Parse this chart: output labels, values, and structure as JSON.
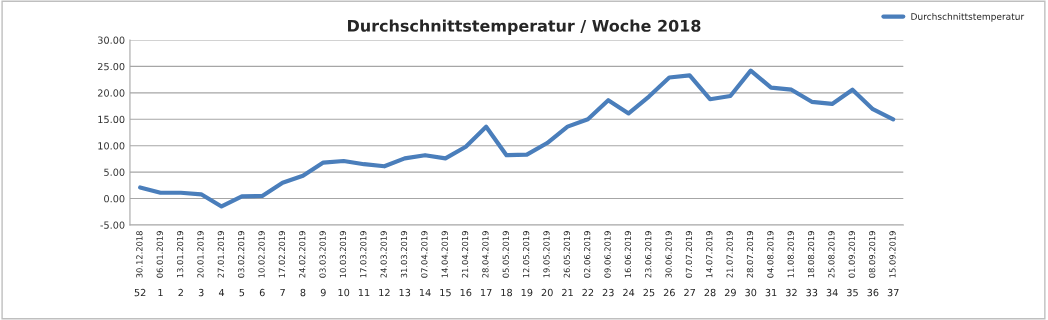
{
  "chart_data": {
    "type": "line",
    "title": "Durchschnittstemperatur / Woche 2018",
    "categories": [
      "30.12.2018\n52",
      "06.01.2019\n1",
      "13.01.2019\n2",
      "20.01.2019\n3",
      "27.01.2019\n4",
      "03.02.2019\n5",
      "10.02.2019\n6",
      "17.02.2019\n7",
      "24.02.2019\n8",
      "03.03.2019\n9",
      "10.03.2019\n10",
      "17.03.2019\n11",
      "24.03.2019\n12",
      "31.03.2019\n13",
      "07.04.2019\n14",
      "14.04.2019\n15",
      "21.04.2019\n16",
      "28.04.2019\n17",
      "05.05.2019\n18",
      "12.05.2019\n19",
      "19.05.2019\n20",
      "26.05.2019\n21",
      "02.06.2019\n22",
      "09.06.2019\n23",
      "16.06.2019\n24",
      "23.06.2019\n25",
      "30.06.2019\n26",
      "07.07.2019\n27",
      "14.07.2019\n28",
      "21.07.2019\n29",
      "28.07.2019\n30",
      "04.08.2019\n31",
      "11.08.2019\n32",
      "18.08.2019\n33",
      "25.08.2019\n34",
      "01.09.2019\n35",
      "08.09.2019\n36",
      "15.09.2019\n37"
    ],
    "series": [
      {
        "name": "Durchschnittstemperatur",
        "color": "#4a7ebb",
        "values": [
          2.1,
          1.1,
          1.1,
          0.8,
          -1.5,
          0.4,
          0.5,
          3.0,
          4.3,
          6.8,
          7.1,
          6.5,
          6.1,
          7.6,
          8.2,
          7.6,
          9.8,
          13.6,
          8.2,
          8.3,
          10.5,
          13.6,
          15.0,
          18.6,
          16.1,
          19.3,
          22.9,
          23.3,
          18.8,
          19.4,
          24.2,
          21.0,
          20.6,
          18.3,
          17.9,
          20.6,
          16.9,
          15.0
        ]
      }
    ],
    "ylim": [
      -5,
      30
    ],
    "yticks": [
      {
        "value": -5,
        "label": "-5.00"
      },
      {
        "value": 0,
        "label": "0.00"
      },
      {
        "value": 5,
        "label": "5.00"
      },
      {
        "value": 10,
        "label": "10.00"
      },
      {
        "value": 15,
        "label": "15.00"
      },
      {
        "value": 20,
        "label": "20.00"
      },
      {
        "value": 25,
        "label": "25.00"
      },
      {
        "value": 30,
        "label": "30.00"
      }
    ],
    "grid": "y",
    "legend": "top right",
    "marker": "none",
    "line_style": "solid"
  }
}
